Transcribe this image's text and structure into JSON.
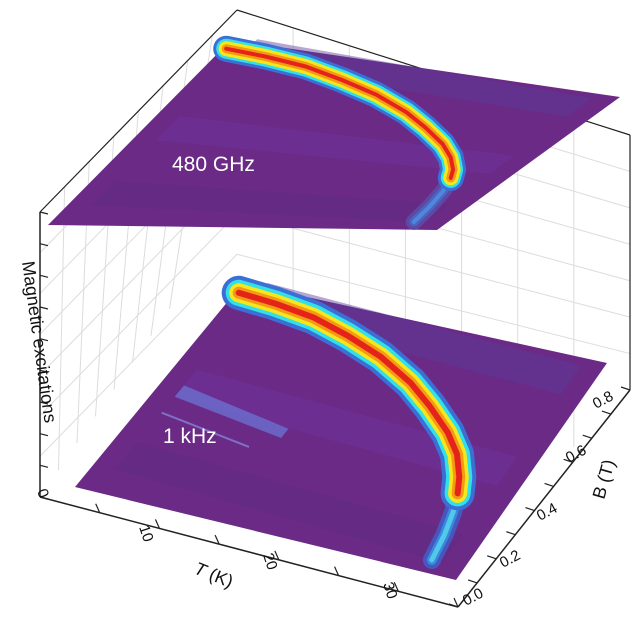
{
  "chart_data": {
    "type": "heatmap",
    "title": "",
    "zlabel": "Magnetic excitations",
    "xlabel": {
      "italic": "T",
      "rest": " (K)"
    },
    "ylabel": "B (T)",
    "xlim": [
      0,
      35
    ],
    "ylim": [
      0.0,
      0.9
    ],
    "x_ticks": [
      "10",
      "20",
      "30"
    ],
    "y_ticks": [
      "0.0",
      "0.2",
      "0.4",
      "0.6",
      "0.8"
    ],
    "z_ticks": [
      "0"
    ],
    "grid": true,
    "colormap": [
      "#6a2a86",
      "#3b6fd6",
      "#34e0e8",
      "#f6e61d",
      "#f59a12",
      "#e4241a"
    ],
    "panels": [
      {
        "name": "480 GHz",
        "ridge": [
          [
            0.3,
            0.86
          ],
          [
            4,
            0.85
          ],
          [
            8,
            0.83
          ],
          [
            12,
            0.79
          ],
          [
            16,
            0.74
          ],
          [
            20,
            0.67
          ],
          [
            23,
            0.6
          ],
          [
            26,
            0.52
          ],
          [
            28,
            0.45
          ],
          [
            29.5,
            0.38
          ],
          [
            30.2,
            0.33
          ]
        ],
        "tail": [
          [
            30.2,
            0.33
          ],
          [
            31,
            0.25
          ],
          [
            31.6,
            0.15
          ],
          [
            32,
            0.05
          ]
        ]
      },
      {
        "name": "1 kHz",
        "ridge": [
          [
            0.3,
            0.86
          ],
          [
            4,
            0.85
          ],
          [
            8,
            0.83
          ],
          [
            12,
            0.79
          ],
          [
            16,
            0.74
          ],
          [
            20,
            0.67
          ],
          [
            23,
            0.6
          ],
          [
            26,
            0.52
          ],
          [
            28,
            0.45
          ],
          [
            29.5,
            0.37
          ],
          [
            30.3,
            0.31
          ]
        ],
        "tail": [
          [
            30.3,
            0.31
          ],
          [
            31,
            0.24
          ],
          [
            31.6,
            0.15
          ],
          [
            32,
            0.05
          ]
        ]
      }
    ]
  }
}
